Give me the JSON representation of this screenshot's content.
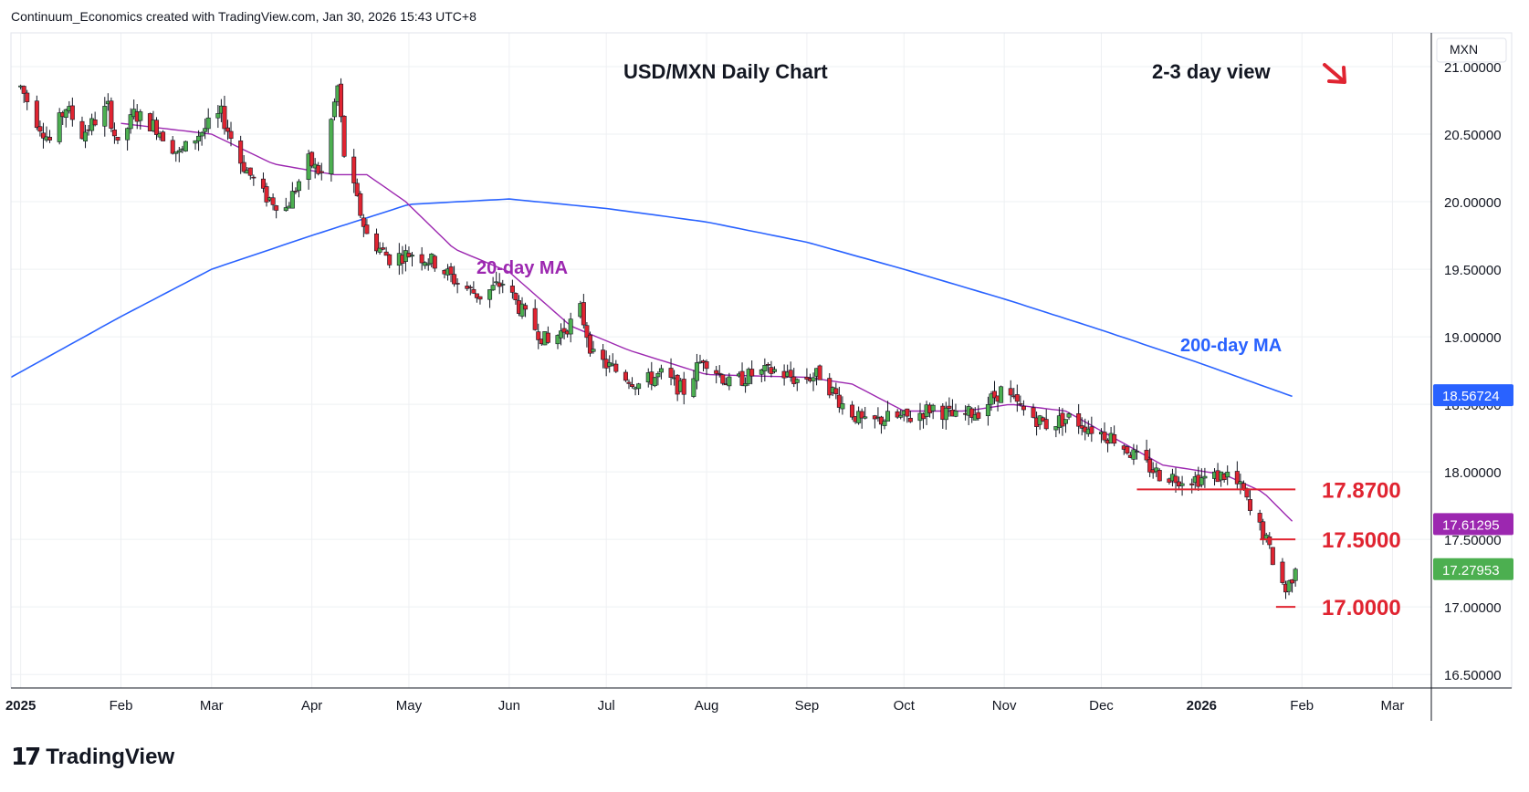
{
  "header": {
    "attribution": "Continuum_Economics created with TradingView.com, Jan 30, 2026 15:43 UTC+8"
  },
  "brand": {
    "logo_mark": "17",
    "logo_text": "TradingView"
  },
  "colors": {
    "up": "#4caf50",
    "down": "#e02431",
    "ma20": "#9c27b0",
    "ma200": "#2962ff",
    "level": "#e02431",
    "grid": "#eef0f3",
    "last": "#4caf50"
  },
  "annotations": {
    "title": "USD/MXN Daily Chart",
    "view": "2-3 day view",
    "view_arrow_icon": "arrow-down-right",
    "ma20_label": "20-day MA",
    "ma200_label": "200-day MA"
  },
  "chart_data": {
    "type": "candlestick",
    "symbol": "USD/MXN",
    "currency_label": "MXN",
    "y_range": [
      16.4,
      21.25
    ],
    "y_ticks": [
      {
        "value": 16.5,
        "label": "16.50000"
      },
      {
        "value": 17.0,
        "label": "17.00000"
      },
      {
        "value": 17.5,
        "label": "17.50000"
      },
      {
        "value": 18.0,
        "label": "18.00000"
      },
      {
        "value": 18.5,
        "label": "18.50000"
      },
      {
        "value": 19.0,
        "label": "19.00000"
      },
      {
        "value": 19.5,
        "label": "19.50000"
      },
      {
        "value": 20.0,
        "label": "20.00000"
      },
      {
        "value": 20.5,
        "label": "20.50000"
      },
      {
        "value": 21.0,
        "label": "21.00000"
      }
    ],
    "x_ticks": [
      {
        "date": "2025-01-01",
        "label": "2025",
        "bold": true
      },
      {
        "date": "2025-02-01",
        "label": "Feb"
      },
      {
        "date": "2025-03-01",
        "label": "Mar"
      },
      {
        "date": "2025-04-01",
        "label": "Apr"
      },
      {
        "date": "2025-05-01",
        "label": "May"
      },
      {
        "date": "2025-06-01",
        "label": "Jun"
      },
      {
        "date": "2025-07-01",
        "label": "Jul"
      },
      {
        "date": "2025-08-01",
        "label": "Aug"
      },
      {
        "date": "2025-09-01",
        "label": "Sep"
      },
      {
        "date": "2025-10-01",
        "label": "Oct"
      },
      {
        "date": "2025-11-01",
        "label": "Nov"
      },
      {
        "date": "2025-12-01",
        "label": "Dec"
      },
      {
        "date": "2026-01-01",
        "label": "2026",
        "bold": true
      },
      {
        "date": "2026-02-01",
        "label": "Feb"
      },
      {
        "date": "2026-03-01",
        "label": "Mar"
      }
    ],
    "x_range": [
      "2024-12-29",
      "2026-03-13"
    ],
    "price_anchors": [
      [
        "2025-01-01",
        20.85
      ],
      [
        "2025-01-06",
        20.6
      ],
      [
        "2025-01-10",
        20.45
      ],
      [
        "2025-01-15",
        20.7
      ],
      [
        "2025-01-20",
        20.5
      ],
      [
        "2025-01-24",
        20.6
      ],
      [
        "2025-01-28",
        20.7
      ],
      [
        "2025-01-31",
        20.4
      ],
      [
        "2025-02-05",
        20.65
      ],
      [
        "2025-02-12",
        20.55
      ],
      [
        "2025-02-19",
        20.35
      ],
      [
        "2025-02-25",
        20.5
      ],
      [
        "2025-03-04",
        20.65
      ],
      [
        "2025-03-10",
        20.3
      ],
      [
        "2025-03-17",
        20.05
      ],
      [
        "2025-03-24",
        19.95
      ],
      [
        "2025-03-31",
        20.3
      ],
      [
        "2025-04-04",
        20.2
      ],
      [
        "2025-04-07",
        20.6
      ],
      [
        "2025-04-09",
        20.85
      ],
      [
        "2025-04-11",
        20.35
      ],
      [
        "2025-04-15",
        20.0
      ],
      [
        "2025-04-18",
        19.75
      ],
      [
        "2025-04-25",
        19.58
      ],
      [
        "2025-05-02",
        19.62
      ],
      [
        "2025-05-09",
        19.55
      ],
      [
        "2025-05-16",
        19.4
      ],
      [
        "2025-05-23",
        19.3
      ],
      [
        "2025-05-30",
        19.4
      ],
      [
        "2025-06-06",
        19.15
      ],
      [
        "2025-06-13",
        18.95
      ],
      [
        "2025-06-20",
        19.1
      ],
      [
        "2025-06-23",
        19.2
      ],
      [
        "2025-06-27",
        18.85
      ],
      [
        "2025-07-04",
        18.75
      ],
      [
        "2025-07-11",
        18.65
      ],
      [
        "2025-07-18",
        18.72
      ],
      [
        "2025-07-25",
        18.6
      ],
      [
        "2025-07-31",
        18.85
      ],
      [
        "2025-08-08",
        18.65
      ],
      [
        "2025-08-15",
        18.72
      ],
      [
        "2025-08-22",
        18.75
      ],
      [
        "2025-08-29",
        18.68
      ],
      [
        "2025-09-05",
        18.72
      ],
      [
        "2025-09-12",
        18.5
      ],
      [
        "2025-09-19",
        18.35
      ],
      [
        "2025-09-26",
        18.4
      ],
      [
        "2025-10-03",
        18.4
      ],
      [
        "2025-10-10",
        18.48
      ],
      [
        "2025-10-17",
        18.4
      ],
      [
        "2025-10-24",
        18.45
      ],
      [
        "2025-10-31",
        18.6
      ],
      [
        "2025-11-07",
        18.45
      ],
      [
        "2025-11-14",
        18.35
      ],
      [
        "2025-11-21",
        18.4
      ],
      [
        "2025-11-28",
        18.32
      ],
      [
        "2025-12-05",
        18.25
      ],
      [
        "2025-12-12",
        18.1
      ],
      [
        "2025-12-19",
        17.98
      ],
      [
        "2025-12-26",
        17.95
      ],
      [
        "2026-01-02",
        17.95
      ],
      [
        "2026-01-09",
        17.98
      ],
      [
        "2026-01-14",
        17.85
      ],
      [
        "2026-01-16",
        17.7
      ],
      [
        "2026-01-20",
        17.55
      ],
      [
        "2026-01-23",
        17.35
      ],
      [
        "2026-01-27",
        17.12
      ],
      [
        "2026-01-30",
        17.28
      ]
    ],
    "ma20_anchors": [
      [
        "2025-02-01",
        20.58
      ],
      [
        "2025-03-01",
        20.5
      ],
      [
        "2025-03-20",
        20.28
      ],
      [
        "2025-04-08",
        20.2
      ],
      [
        "2025-04-18",
        20.2
      ],
      [
        "2025-04-30",
        20.0
      ],
      [
        "2025-05-15",
        19.65
      ],
      [
        "2025-06-01",
        19.48
      ],
      [
        "2025-06-20",
        19.08
      ],
      [
        "2025-07-08",
        18.9
      ],
      [
        "2025-08-01",
        18.72
      ],
      [
        "2025-09-01",
        18.7
      ],
      [
        "2025-09-15",
        18.65
      ],
      [
        "2025-10-01",
        18.45
      ],
      [
        "2025-10-20",
        18.45
      ],
      [
        "2025-11-03",
        18.5
      ],
      [
        "2025-11-20",
        18.45
      ],
      [
        "2025-12-05",
        18.25
      ],
      [
        "2025-12-20",
        18.05
      ],
      [
        "2026-01-08",
        17.98
      ],
      [
        "2026-01-20",
        17.85
      ],
      [
        "2026-01-30",
        17.61
      ]
    ],
    "ma200_anchors": [
      [
        "2024-12-29",
        18.7
      ],
      [
        "2025-02-01",
        19.15
      ],
      [
        "2025-03-01",
        19.5
      ],
      [
        "2025-04-01",
        19.75
      ],
      [
        "2025-05-01",
        19.98
      ],
      [
        "2025-06-01",
        20.02
      ],
      [
        "2025-07-01",
        19.95
      ],
      [
        "2025-08-01",
        19.85
      ],
      [
        "2025-09-01",
        19.7
      ],
      [
        "2025-10-01",
        19.5
      ],
      [
        "2025-11-01",
        19.28
      ],
      [
        "2025-12-01",
        19.05
      ],
      [
        "2026-01-01",
        18.8
      ],
      [
        "2026-01-30",
        18.55
      ]
    ],
    "levels": [
      {
        "value": 17.87,
        "label": "17.8700",
        "from": "2025-12-12",
        "to": "2026-01-30"
      },
      {
        "value": 17.5,
        "label": "17.5000",
        "from": "2026-01-19",
        "to": "2026-01-30"
      },
      {
        "value": 17.0,
        "label": "17.0000",
        "from": "2026-01-24",
        "to": "2026-01-30"
      }
    ],
    "price_tags": [
      {
        "value": 18.56724,
        "label": "18.56724",
        "color": "#2962ff",
        "series": "200-day MA"
      },
      {
        "value": 17.61295,
        "label": "17.61295",
        "color": "#9c27b0",
        "series": "20-day MA"
      },
      {
        "value": 17.27953,
        "label": "17.27953",
        "color": "#4caf50",
        "series": "last"
      }
    ],
    "last_close": 17.27953,
    "grid": true
  }
}
